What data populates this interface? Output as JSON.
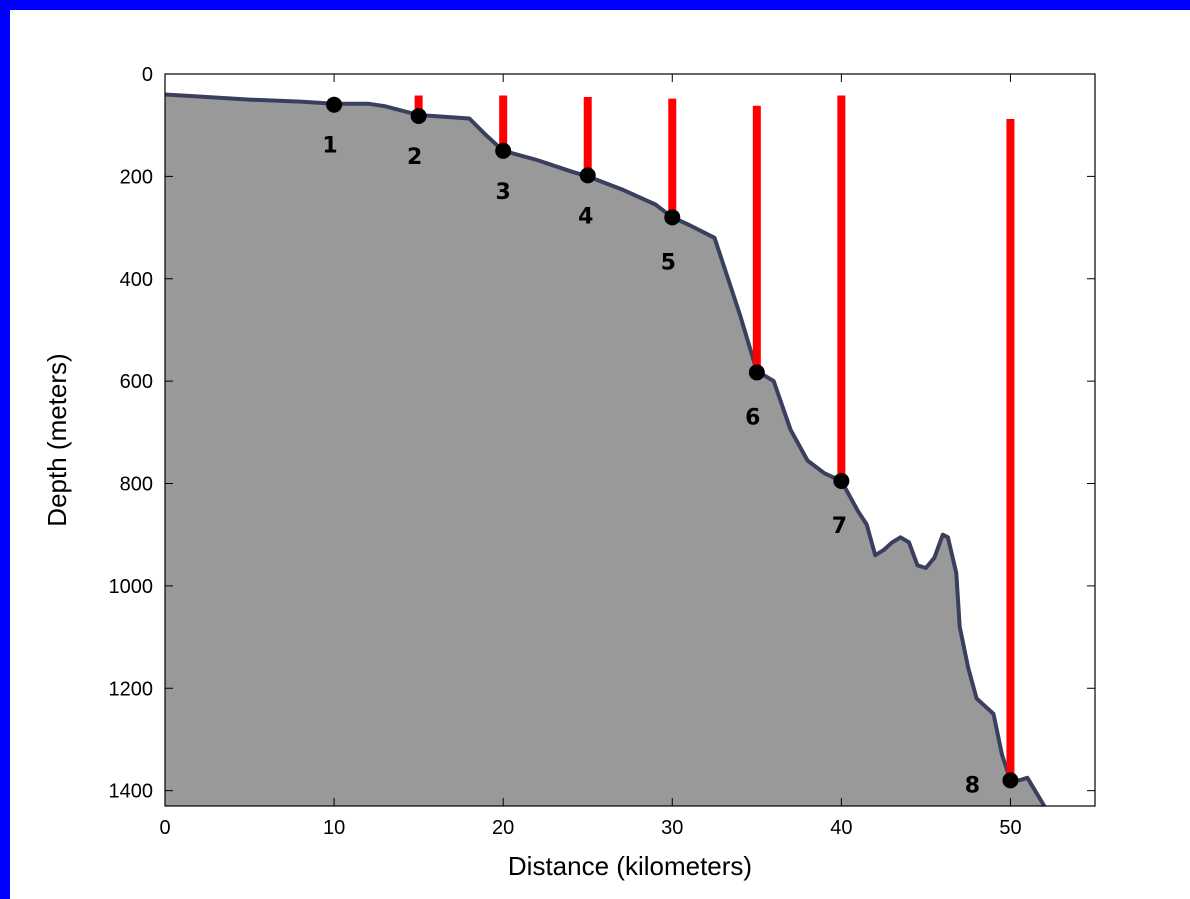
{
  "chart_data": {
    "type": "area",
    "xlabel": "Distance (kilometers)",
    "ylabel": "Depth (meters)",
    "xlim": [
      0,
      55
    ],
    "ylim": [
      0,
      1430
    ],
    "y_inverted": true,
    "x_ticks": [
      0,
      10,
      20,
      30,
      40,
      50
    ],
    "y_ticks": [
      0,
      200,
      400,
      600,
      800,
      1000,
      1200,
      1400
    ],
    "grid": false,
    "colors": {
      "fill": "#999999",
      "outline": "#3a3f5e",
      "bar": "#ff0000",
      "point": "#000000"
    },
    "profile": {
      "x": [
        0,
        2,
        5,
        8,
        10,
        12,
        13,
        15,
        18,
        19,
        20,
        22,
        24,
        25,
        27,
        29,
        30,
        31,
        32.5,
        33,
        34,
        35,
        36,
        37,
        38,
        39,
        40,
        41,
        41.5,
        42,
        42.5,
        43,
        43.5,
        44,
        44.5,
        45,
        45.5,
        46,
        46.3,
        46.8,
        47,
        47.5,
        48,
        49,
        49.5,
        50,
        50.5,
        51,
        52
      ],
      "depth": [
        40,
        44,
        50,
        54,
        58,
        58,
        63,
        80,
        87,
        120,
        150,
        168,
        190,
        200,
        225,
        255,
        280,
        295,
        320,
        370,
        470,
        580,
        600,
        695,
        755,
        780,
        795,
        855,
        880,
        940,
        930,
        915,
        905,
        915,
        960,
        965,
        945,
        900,
        905,
        975,
        1080,
        1160,
        1220,
        1250,
        1330,
        1380,
        1380,
        1375,
        1430
      ]
    },
    "stations": [
      {
        "label": "1",
        "x": 10,
        "depth": 60,
        "bar_top": null
      },
      {
        "label": "2",
        "x": 15,
        "depth": 82,
        "bar_top": 42
      },
      {
        "label": "3",
        "x": 20,
        "depth": 150,
        "bar_top": 42
      },
      {
        "label": "4",
        "x": 25,
        "depth": 198,
        "bar_top": 45
      },
      {
        "label": "5",
        "x": 30,
        "depth": 280,
        "bar_top": 48
      },
      {
        "label": "6",
        "x": 35,
        "depth": 583,
        "bar_top": 62
      },
      {
        "label": "7",
        "x": 40,
        "depth": 795,
        "bar_top": 42
      },
      {
        "label": "8",
        "x": 50,
        "depth": 1380,
        "bar_top": 88
      }
    ]
  }
}
